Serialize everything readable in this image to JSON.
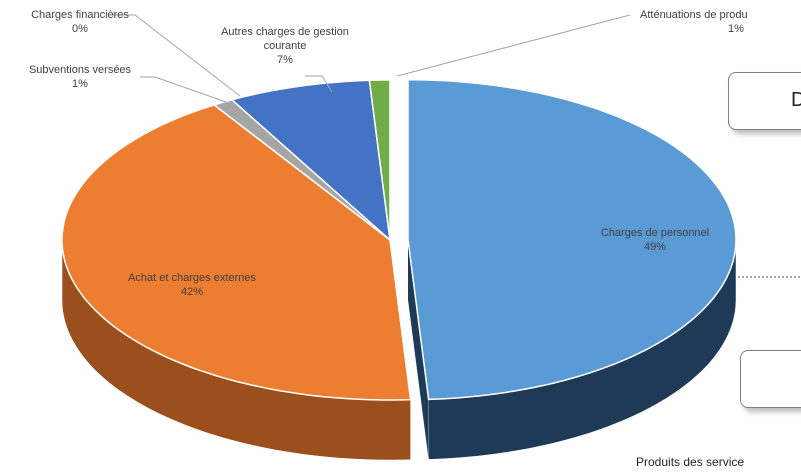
{
  "chart_data": {
    "type": "pie",
    "categories": [
      "Charges de personnel",
      "Achat et charges externes",
      "Charges financières",
      "Subventions versées",
      "Autres charges de gestion courante",
      "Atténuations de produ"
    ],
    "values": [
      49,
      42,
      0,
      1,
      7,
      1
    ],
    "value_labels": [
      "49%",
      "42%",
      "0%",
      "1%",
      "7%",
      "1%"
    ],
    "colors": [
      "#5b9bd5",
      "#ed7d31",
      "#2b2f3a",
      "#a5a5a5",
      "#4472c4",
      "#70ad47"
    ],
    "side_colors": [
      "#1e3a57",
      "#9a4f1c",
      "#15171c",
      "#6e6e6e",
      "#2b4a85",
      "#467030"
    ],
    "annotations": [
      "D",
      "Produits des service"
    ]
  }
}
